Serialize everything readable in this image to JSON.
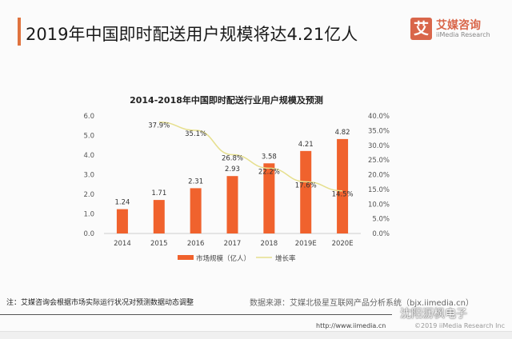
{
  "header": {
    "title": "2019年中国即时配送用户规模将达4.21亿人",
    "logo_glyph": "艾",
    "logo_name": "艾媒咨询",
    "logo_sub": "iiMedia Research"
  },
  "chart_data": {
    "type": "bar+line",
    "title": "2014-2018年中国即时配送行业用户规模及预测",
    "categories": [
      "2014",
      "2015",
      "2016",
      "2017",
      "2018",
      "2019E",
      "2020E"
    ],
    "series": [
      {
        "name": "市场规模（亿人）",
        "type": "bar",
        "axis": "left",
        "color": "#f0622d",
        "values": [
          1.24,
          1.71,
          2.31,
          2.93,
          3.58,
          4.21,
          4.82
        ],
        "labels": [
          "1.24",
          "1.71",
          "2.31",
          "2.93",
          "3.58",
          "4.21",
          "4.82"
        ]
      },
      {
        "name": "增长率",
        "type": "line",
        "axis": "right",
        "color": "#e6df8e",
        "values": [
          null,
          37.9,
          35.1,
          26.8,
          22.2,
          17.6,
          14.5
        ],
        "labels": [
          "",
          "37.9%",
          "35.1%",
          "26.8%",
          "22.2%",
          "17.6%",
          "14.5%"
        ]
      }
    ],
    "y_left": {
      "range": [
        0,
        6
      ],
      "ticks": [
        "0.0",
        "1.0",
        "2.0",
        "3.0",
        "4.0",
        "5.0",
        "6.0"
      ]
    },
    "y_right": {
      "range": [
        0,
        40
      ],
      "ticks": [
        "0.0%",
        "5.0%",
        "10.0%",
        "15.0%",
        "20.0%",
        "25.0%",
        "30.0%",
        "35.0%",
        "40.0%"
      ]
    },
    "grid": false,
    "legend": "bottom"
  },
  "footer": {
    "note": "注：艾媒咨询会根据市场实际运行状况对预测数据动态调整",
    "source": "数据来源：艾媒北极星互联网产品分析系统（bjx.iimedia.cn）",
    "url": "http://www.iimedia.cn",
    "copyright": "©2019 iiMedia Research Inc",
    "watermark": "沈阳沥枫电子"
  }
}
